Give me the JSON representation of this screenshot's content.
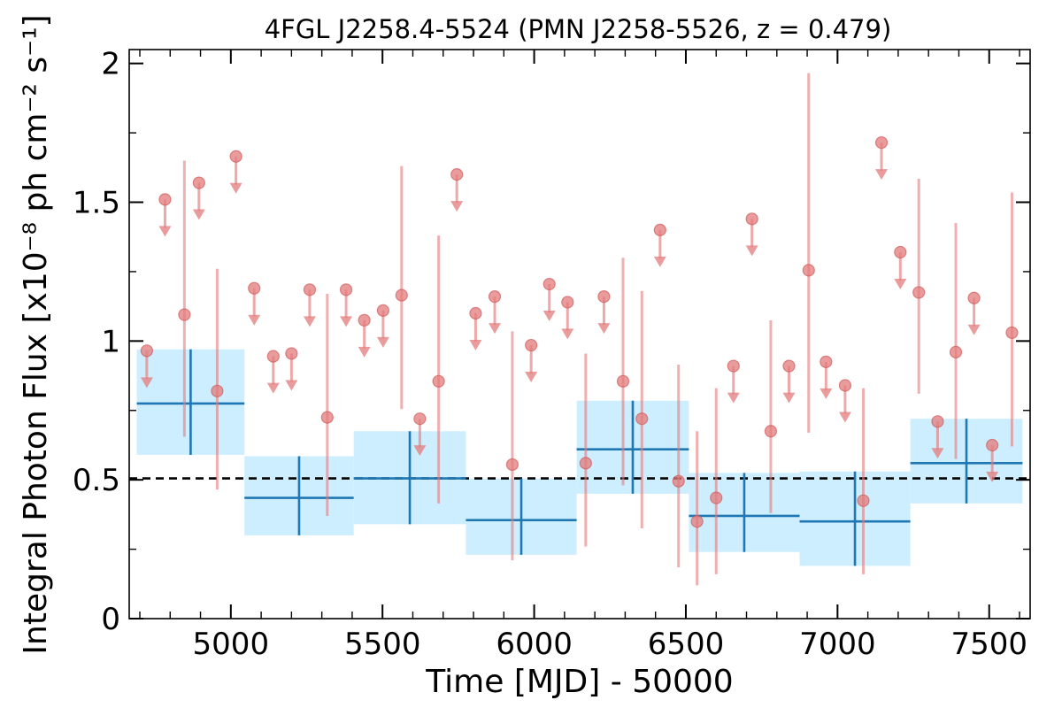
{
  "chart_data": {
    "type": "scatter",
    "title": "4FGL J2258.4-5524 (PMN J2258-5526, z = 0.479)",
    "xlabel": "Time [MJD] - 50000",
    "ylabel": "Integral Photon Flux [x10⁻⁸ ph cm⁻² s⁻¹]",
    "xlim": [
      4665,
      7635
    ],
    "ylim": [
      0,
      2.05
    ],
    "x_ticks": [
      5000,
      5500,
      6000,
      6500,
      7000,
      7500
    ],
    "x_tick_labels": [
      "5000",
      "5500",
      "6000",
      "6500",
      "7000",
      "7500"
    ],
    "y_ticks": [
      0,
      0.5,
      1,
      1.5,
      2
    ],
    "y_tick_labels": [
      "0",
      "0.5",
      "1",
      "1.5",
      "2"
    ],
    "reference_line": {
      "y": 0.505,
      "style": "dashed",
      "color": "#000000"
    },
    "series": [
      {
        "kind": "short_bin_points",
        "color": "#e37b7b",
        "points": [
          {
            "x": 4847,
            "y": 1.095,
            "lo": 0.655,
            "hi": 1.65
          },
          {
            "x": 4955,
            "y": 0.82,
            "lo": 0.465,
            "hi": 1.26
          },
          {
            "x": 5318,
            "y": 0.725,
            "lo": 0.37,
            "hi": 1.17
          },
          {
            "x": 5563,
            "y": 1.165,
            "lo": 0.755,
            "hi": 1.63
          },
          {
            "x": 5685,
            "y": 0.855,
            "lo": 0.415,
            "hi": 1.38
          },
          {
            "x": 5928,
            "y": 0.555,
            "lo": 0.21,
            "hi": 1.035
          },
          {
            "x": 6170,
            "y": 0.56,
            "lo": 0.26,
            "hi": 0.955
          },
          {
            "x": 6293,
            "y": 0.855,
            "lo": 0.48,
            "hi": 1.3
          },
          {
            "x": 6355,
            "y": 0.72,
            "lo": 0.325,
            "hi": 1.18
          },
          {
            "x": 6476,
            "y": 0.495,
            "lo": 0.185,
            "hi": 0.915
          },
          {
            "x": 6537,
            "y": 0.35,
            "lo": 0.12,
            "hi": 0.675
          },
          {
            "x": 6600,
            "y": 0.435,
            "lo": 0.16,
            "hi": 0.83
          },
          {
            "x": 6780,
            "y": 0.675,
            "lo": 0.38,
            "hi": 1.075
          },
          {
            "x": 6905,
            "y": 1.255,
            "lo": 0.67,
            "hi": 1.965
          },
          {
            "x": 7085,
            "y": 0.425,
            "lo": 0.16,
            "hi": 0.83
          },
          {
            "x": 7268,
            "y": 1.175,
            "lo": 0.81,
            "hi": 1.585
          },
          {
            "x": 7390,
            "y": 0.96,
            "lo": 0.575,
            "hi": 1.425
          },
          {
            "x": 7575,
            "y": 1.03,
            "lo": 0.62,
            "hi": 1.535
          }
        ],
        "upper_limits": [
          {
            "x": 4723,
            "y": 0.965
          },
          {
            "x": 4783,
            "y": 1.51
          },
          {
            "x": 4895,
            "y": 1.57
          },
          {
            "x": 5017,
            "y": 1.665
          },
          {
            "x": 5077,
            "y": 1.19
          },
          {
            "x": 5140,
            "y": 0.945
          },
          {
            "x": 5200,
            "y": 0.955
          },
          {
            "x": 5260,
            "y": 1.185
          },
          {
            "x": 5380,
            "y": 1.185
          },
          {
            "x": 5440,
            "y": 1.075
          },
          {
            "x": 5502,
            "y": 1.11
          },
          {
            "x": 5623,
            "y": 0.72
          },
          {
            "x": 5745,
            "y": 1.6
          },
          {
            "x": 5807,
            "y": 1.1
          },
          {
            "x": 5870,
            "y": 1.16
          },
          {
            "x": 5990,
            "y": 0.985
          },
          {
            "x": 6050,
            "y": 1.205
          },
          {
            "x": 6110,
            "y": 1.14
          },
          {
            "x": 6230,
            "y": 1.16
          },
          {
            "x": 6415,
            "y": 1.4
          },
          {
            "x": 6657,
            "y": 0.91
          },
          {
            "x": 6718,
            "y": 1.44
          },
          {
            "x": 6840,
            "y": 0.91
          },
          {
            "x": 6962,
            "y": 0.925
          },
          {
            "x": 7025,
            "y": 0.84
          },
          {
            "x": 7145,
            "y": 1.715
          },
          {
            "x": 7207,
            "y": 1.32
          },
          {
            "x": 7330,
            "y": 0.71
          },
          {
            "x": 7450,
            "y": 1.155
          },
          {
            "x": 7510,
            "y": 0.625
          }
        ]
      },
      {
        "kind": "long_bin_points",
        "color": "#1f77b4",
        "band_color": "#cdeeff",
        "bins": [
          {
            "x0": 4690,
            "x1": 5045,
            "y": 0.775,
            "lo": 0.59,
            "hi": 0.97
          },
          {
            "x0": 5045,
            "x1": 5405,
            "y": 0.435,
            "lo": 0.3,
            "hi": 0.585
          },
          {
            "x0": 5405,
            "x1": 5775,
            "y": 0.505,
            "lo": 0.34,
            "hi": 0.675
          },
          {
            "x0": 5775,
            "x1": 6140,
            "y": 0.355,
            "lo": 0.23,
            "hi": 0.505
          },
          {
            "x0": 6140,
            "x1": 6510,
            "y": 0.61,
            "lo": 0.45,
            "hi": 0.785
          },
          {
            "x0": 6510,
            "x1": 6875,
            "y": 0.37,
            "lo": 0.24,
            "hi": 0.525
          },
          {
            "x0": 6875,
            "x1": 7240,
            "y": 0.35,
            "lo": 0.19,
            "hi": 0.53
          },
          {
            "x0": 7240,
            "x1": 7610,
            "y": 0.56,
            "lo": 0.415,
            "hi": 0.72
          }
        ]
      }
    ]
  }
}
